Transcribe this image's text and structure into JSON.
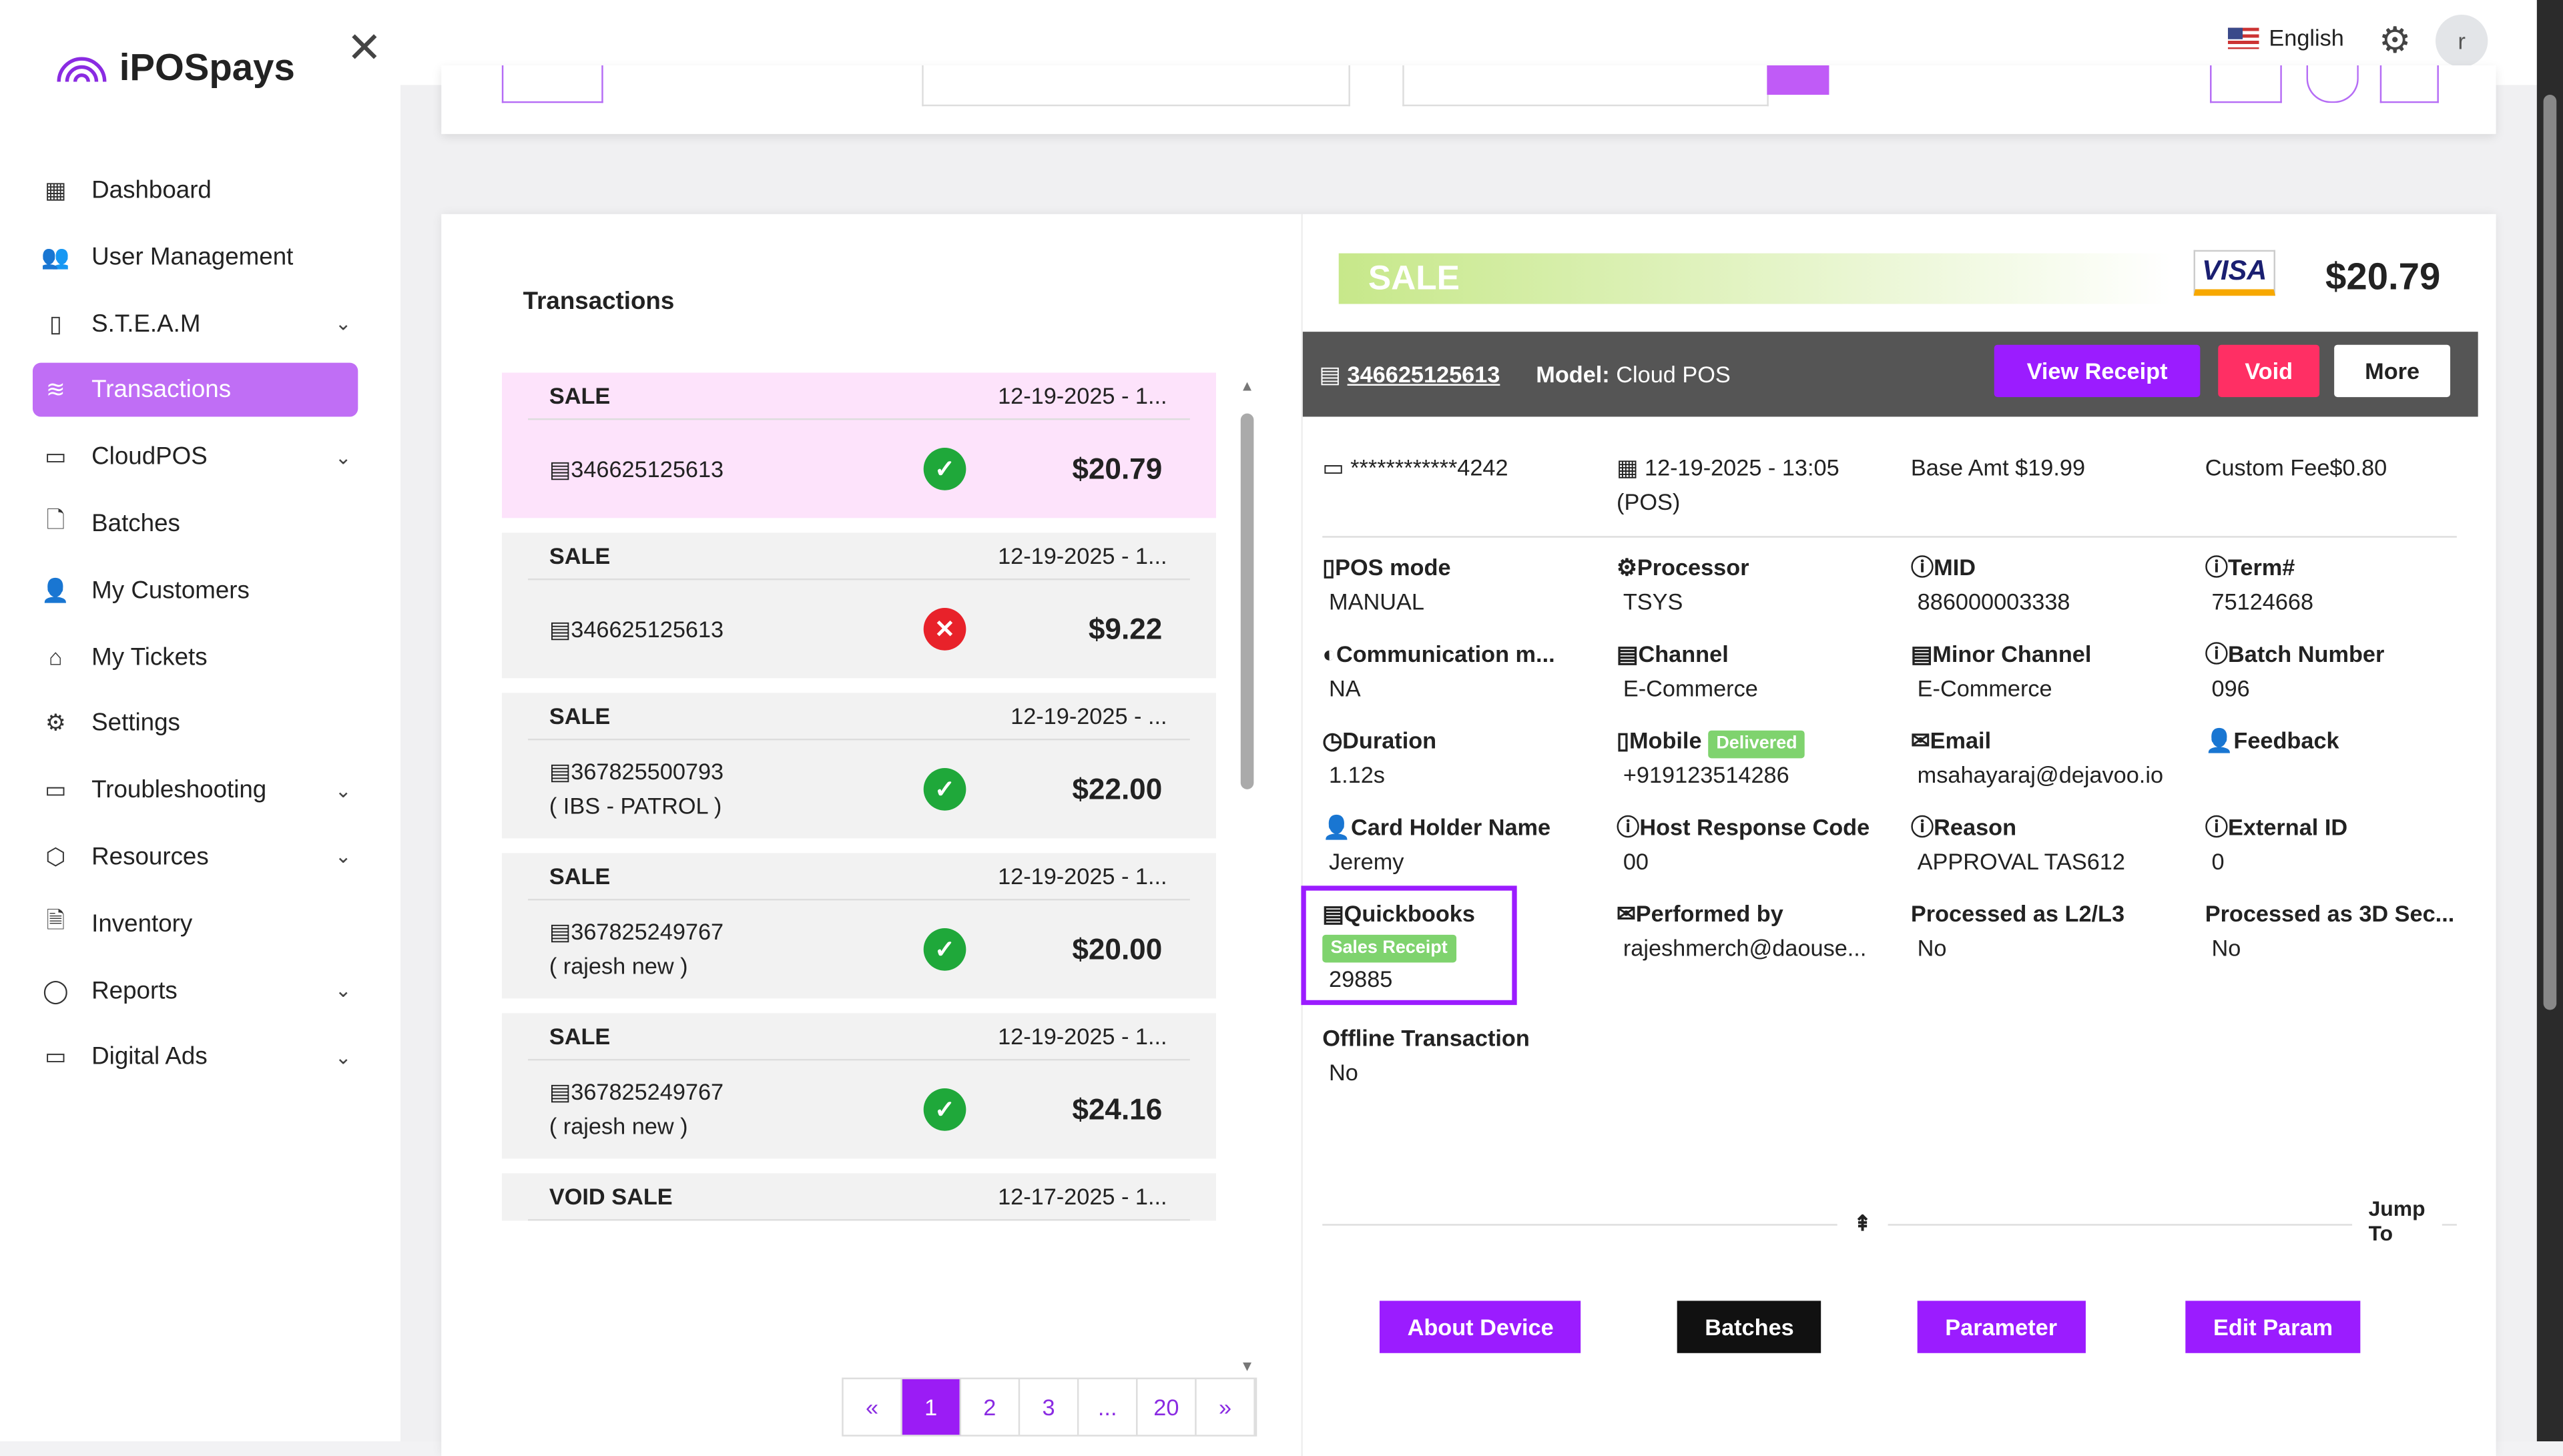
{
  "app": {
    "logo": "iPOSpays"
  },
  "header": {
    "language": "English",
    "avatar_initial": "r"
  },
  "sidebar": {
    "items": [
      {
        "label": "Dashboard",
        "icon": "grid-icon",
        "chev": false
      },
      {
        "label": "User Management",
        "icon": "users-icon",
        "chev": false
      },
      {
        "label": "S.T.E.A.M",
        "icon": "tablet-icon",
        "chev": true
      },
      {
        "label": "Transactions",
        "icon": "layers-icon",
        "chev": false,
        "active": true
      },
      {
        "label": "CloudPOS",
        "icon": "card-icon",
        "chev": true
      },
      {
        "label": "Batches",
        "icon": "file-icon",
        "chev": false
      },
      {
        "label": "My Customers",
        "icon": "user-icon",
        "chev": false
      },
      {
        "label": "My Tickets",
        "icon": "inbox-icon",
        "chev": false
      },
      {
        "label": "Settings",
        "icon": "gear-icon",
        "chev": false
      },
      {
        "label": "Troubleshooting",
        "icon": "monitor-icon",
        "chev": true
      },
      {
        "label": "Resources",
        "icon": "box-icon",
        "chev": true
      },
      {
        "label": "Inventory",
        "icon": "document-icon",
        "chev": false
      },
      {
        "label": "Reports",
        "icon": "chat-icon",
        "chev": true
      },
      {
        "label": "Digital Ads",
        "icon": "monitor-icon",
        "chev": true
      }
    ]
  },
  "list": {
    "title": "Transactions",
    "items": [
      {
        "type": "SALE",
        "date": "12-19-2025 - 1...",
        "id": "346625125613",
        "sub": "",
        "status": "ok",
        "amount": "$20.79"
      },
      {
        "type": "SALE",
        "date": "12-19-2025 - 1...",
        "id": "346625125613",
        "sub": "",
        "status": "err",
        "amount": "$9.22"
      },
      {
        "type": "SALE",
        "date": "12-19-2025 - ...",
        "id": "367825500793",
        "sub": "( IBS - PATROL )",
        "status": "ok",
        "amount": "$22.00"
      },
      {
        "type": "SALE",
        "date": "12-19-2025 - 1...",
        "id": "367825249767",
        "sub": "( rajesh new )",
        "status": "ok",
        "amount": "$20.00"
      },
      {
        "type": "SALE",
        "date": "12-19-2025 - 1...",
        "id": "367825249767",
        "sub": "( rajesh new )",
        "status": "ok",
        "amount": "$24.16"
      },
      {
        "type": "VOID SALE",
        "date": "12-17-2025 - 1...",
        "id": "",
        "sub": "",
        "status": "",
        "amount": ""
      }
    ]
  },
  "pager": [
    "«",
    "1",
    "2",
    "3",
    "...",
    "20",
    "»"
  ],
  "detail": {
    "type": "SALE",
    "card_brand": "VISA",
    "total": "$20.79",
    "terminal_id": "346625125613",
    "model_label": "Model:",
    "model": "Cloud POS",
    "view_receipt": "View Receipt",
    "void": "Void",
    "more": "More",
    "card": "************4242",
    "datetime": "12-19-2025 - 13:05",
    "source": "(POS)",
    "base_amt": "Base Amt $19.99",
    "custom_fee": "Custom Fee$0.80",
    "fields": [
      {
        "label": "POS mode",
        "icon": "▯",
        "value": "MANUAL"
      },
      {
        "label": "Processor",
        "icon": "⚙",
        "value": "TSYS"
      },
      {
        "label": "MID",
        "icon": "ⓘ",
        "value": "886000003338"
      },
      {
        "label": "Term#",
        "icon": "ⓘ",
        "value": "75124668"
      },
      {
        "label": "Communication m...",
        "icon": "◐",
        "value": "NA"
      },
      {
        "label": "Channel",
        "icon": "▤",
        "value": "E-Commerce"
      },
      {
        "label": "Minor Channel",
        "icon": "▤",
        "value": "E-Commerce"
      },
      {
        "label": "Batch Number",
        "icon": "ⓘ",
        "value": "096"
      },
      {
        "label": "Duration",
        "icon": "◷",
        "value": "1.12s"
      },
      {
        "label": "Mobile",
        "icon": "▯",
        "value": "+919123514286",
        "badge": "Delivered"
      },
      {
        "label": "Email",
        "icon": "✉",
        "value": "msahayaraj@dejavoo.io"
      },
      {
        "label": "Feedback",
        "icon": "👤",
        "value": ""
      },
      {
        "label": "Card Holder Name",
        "icon": "👤",
        "value": "Jeremy"
      },
      {
        "label": "Host Response Code",
        "icon": "ⓘ",
        "value": "00"
      },
      {
        "label": "Reason",
        "icon": "ⓘ",
        "value": "APPROVAL TAS612"
      },
      {
        "label": "External ID",
        "icon": "ⓘ",
        "value": "0"
      },
      {
        "label": "Quickbooks",
        "icon": "▤",
        "value": "29885",
        "badge": "Sales Receipt",
        "highlight": true
      },
      {
        "label": "Performed by",
        "icon": "✉",
        "value": "rajeshmerch@daouse..."
      },
      {
        "label": "Processed as L2/L3",
        "icon": "",
        "value": "No"
      },
      {
        "label": "Processed as 3D Sec...",
        "icon": "",
        "value": "No"
      },
      {
        "label": "Offline Transaction",
        "icon": "",
        "value": "No"
      }
    ],
    "jump_to": "Jump To",
    "footer_buttons": [
      "About Device",
      "Batches",
      "Parameter",
      "Edit Param"
    ]
  }
}
